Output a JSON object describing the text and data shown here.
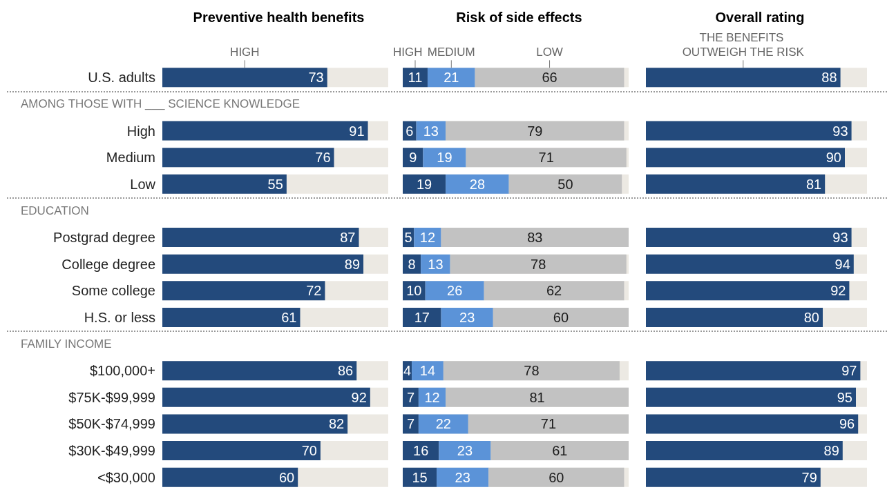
{
  "chart_data": [
    {
      "type": "bar",
      "orientation": "horizontal",
      "title": "Preventive health benefits",
      "categories": [
        "U.S. adults",
        null,
        "High",
        "Medium",
        "Low",
        null,
        "Postgrad degree",
        "College degree",
        "Some college",
        "H.S. or less",
        null,
        "$100,000+",
        "$75K-$99,999",
        "$50K-$74,999",
        "$30K-$49,999",
        "<$30,000"
      ],
      "annotations": [
        "AMONG THOSE WITH ___ SCIENCE KNOWLEDGE",
        "EDUCATION",
        "FAMILY INCOME"
      ],
      "xlim": [
        0,
        100
      ],
      "data_labels": true,
      "legend": "top",
      "series": [
        {
          "name": "HIGH",
          "color": "#234a7c",
          "values": [
            73,
            null,
            91,
            76,
            55,
            null,
            87,
            89,
            72,
            61,
            null,
            86,
            92,
            82,
            70,
            60
          ]
        }
      ]
    },
    {
      "type": "bar",
      "orientation": "horizontal",
      "stacked": true,
      "title": "Risk of side effects",
      "categories": [
        null,
        null,
        null,
        null,
        null,
        null,
        null,
        null,
        null,
        null,
        null,
        null,
        null,
        null,
        null,
        null
      ],
      "xlim": [
        0,
        100
      ],
      "data_labels": true,
      "legend": "top",
      "series": [
        {
          "name": "HIGH",
          "color": "#234a7c",
          "values": [
            11,
            null,
            6,
            9,
            19,
            null,
            5,
            8,
            10,
            17,
            null,
            4,
            7,
            7,
            16,
            15
          ]
        },
        {
          "name": "MEDIUM",
          "color": "#5b93d8",
          "values": [
            21,
            null,
            13,
            19,
            28,
            null,
            12,
            13,
            26,
            23,
            null,
            14,
            12,
            22,
            23,
            23
          ]
        },
        {
          "name": "LOW",
          "color": "#c2c2c2",
          "values": [
            66,
            null,
            79,
            71,
            50,
            null,
            83,
            78,
            62,
            60,
            null,
            78,
            81,
            71,
            61,
            60
          ]
        }
      ]
    },
    {
      "type": "bar",
      "orientation": "horizontal",
      "title": "Overall rating",
      "categories": [
        null,
        null,
        null,
        null,
        null,
        null,
        null,
        null,
        null,
        null,
        null,
        null,
        null,
        null,
        null,
        null
      ],
      "xlim": [
        0,
        100
      ],
      "data_labels": true,
      "legend": "top",
      "series": [
        {
          "name": "THE BENEFITS OUTWEIGH THE RISK",
          "color": "#234a7c",
          "values": [
            88,
            null,
            93,
            90,
            81,
            null,
            93,
            94,
            92,
            80,
            null,
            97,
            95,
            96,
            89,
            79
          ]
        }
      ]
    }
  ]
}
